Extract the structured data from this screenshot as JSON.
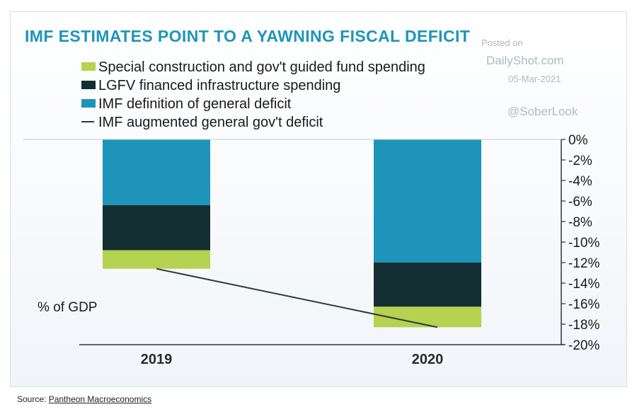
{
  "chart_data": {
    "type": "bar",
    "stacked": true,
    "title": "IMF ESTIMATES POINT TO A YAWNING FISCAL DEFICIT",
    "ylabel": "% of GDP",
    "categories": [
      "2019",
      "2020"
    ],
    "series": [
      {
        "name": "IMF definition of general deficit",
        "type": "bar",
        "color": "#1e95b8",
        "values": [
          -6.4,
          -12.0
        ]
      },
      {
        "name": "LGFV financed infrastructure spending",
        "type": "bar",
        "color": "#142f33",
        "values": [
          -4.4,
          -4.3
        ]
      },
      {
        "name": "Special construction and gov't guided fund spending",
        "type": "bar",
        "color": "#b5d250",
        "values": [
          -1.8,
          -2.0
        ]
      },
      {
        "name": "IMF augmented general gov't deficit",
        "type": "line",
        "color": "#2d3a3c",
        "values": [
          -12.6,
          -18.3
        ]
      }
    ],
    "legend_order": [
      2,
      1,
      0,
      3
    ],
    "ylim": [
      -20,
      0
    ],
    "yticks": [
      0,
      -2,
      -4,
      -6,
      -8,
      -10,
      -12,
      -14,
      -16,
      -18,
      -20
    ],
    "ytick_labels": [
      "0%",
      "-2%",
      "-4%",
      "-6%",
      "-8%",
      "-10%",
      "-12%",
      "-14%",
      "-16%",
      "-18%",
      "-20%"
    ],
    "axis_position": "right",
    "grid": false,
    "legend_placement": "top-left"
  },
  "watermark": {
    "line1": "Posted on",
    "line2": "DailyShot.com",
    "line3": "05-Mar-2021",
    "line4": "@SoberLook"
  },
  "source": {
    "prefix": "Source: ",
    "link_text": "Pantheon Macroeconomics"
  },
  "colors": {
    "title": "#1e95b8",
    "text": "#1a1a1a",
    "axis": "#333333",
    "watermark": "#b4b8bc"
  }
}
